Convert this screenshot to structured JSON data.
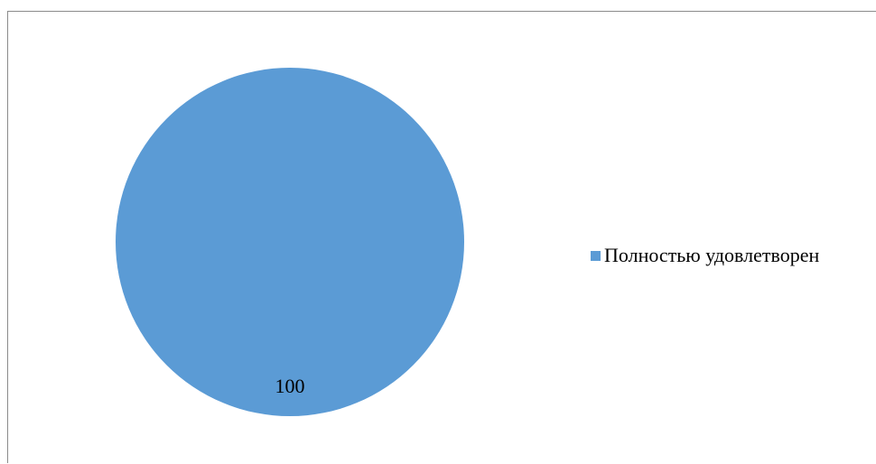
{
  "chart_data": {
    "type": "pie",
    "title": "",
    "categories": [
      "Полностью удовлетворен"
    ],
    "values": [
      100
    ],
    "data_labels": [
      "100"
    ],
    "colors": [
      "#5b9bd5"
    ],
    "legend_position": "right"
  }
}
